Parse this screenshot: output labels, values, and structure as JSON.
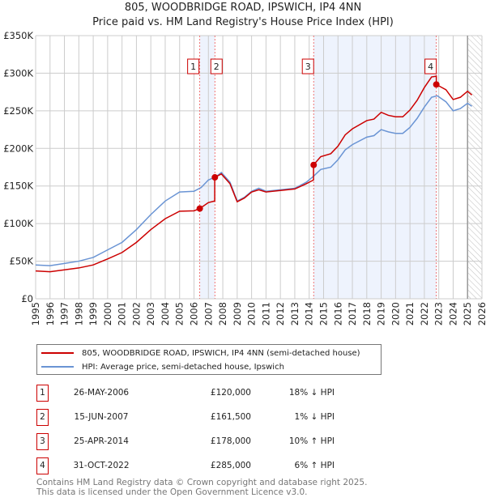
{
  "title": "805, WOODBRIDGE ROAD, IPSWICH, IP4 4NN",
  "subtitle": "Price paid vs. HM Land Registry's House Price Index (HPI)",
  "chart_data": {
    "type": "line",
    "xlim": [
      1995,
      2026
    ],
    "ylim": [
      0,
      350000
    ],
    "yticks": [
      {
        "v": 0,
        "label": "£0"
      },
      {
        "v": 50000,
        "label": "£50K"
      },
      {
        "v": 100000,
        "label": "£100K"
      },
      {
        "v": 150000,
        "label": "£150K"
      },
      {
        "v": 200000,
        "label": "£200K"
      },
      {
        "v": 250000,
        "label": "£250K"
      },
      {
        "v": 300000,
        "label": "£300K"
      },
      {
        "v": 350000,
        "label": "£350K"
      }
    ],
    "xticks": [
      1995,
      1996,
      1997,
      1998,
      1999,
      2000,
      2001,
      2002,
      2003,
      2004,
      2005,
      2006,
      2007,
      2008,
      2009,
      2010,
      2011,
      2012,
      2013,
      2014,
      2015,
      2016,
      2017,
      2018,
      2019,
      2020,
      2021,
      2022,
      2023,
      2024,
      2025,
      2026
    ],
    "grid": true,
    "series": [
      {
        "name": "805, WOODBRIDGE ROAD, IPSWICH, IP4 4NN (semi-detached house)",
        "color": "#cc0000",
        "x": [
          1995,
          1996,
          1997,
          1998,
          1999,
          2000,
          2001,
          2002,
          2003,
          2004,
          2005,
          2006,
          2006.4,
          2007,
          2007.44,
          2007.44,
          2007.9,
          2008.5,
          2009,
          2009.5,
          2010,
          2010.5,
          2011,
          2012,
          2013,
          2013.8,
          2014.3,
          2014.3,
          2014.8,
          2015.5,
          2016,
          2016.5,
          2017,
          2018,
          2018.5,
          2019,
          2019.5,
          2020,
          2020.5,
          2021,
          2021.5,
          2022,
          2022.5,
          2022.83,
          2022.83,
          2023.5,
          2024,
          2024.5,
          2025,
          2025.3
        ],
        "y": [
          37000,
          36000,
          38500,
          41000,
          45000,
          53000,
          61500,
          75000,
          92000,
          106500,
          116500,
          117000,
          120000,
          128000,
          130000,
          161500,
          166000,
          153000,
          129000,
          134000,
          142000,
          145000,
          142000,
          144000,
          146000,
          153000,
          158000,
          178000,
          189000,
          193000,
          203000,
          218000,
          226000,
          237000,
          239000,
          248000,
          244000,
          242000,
          242000,
          251000,
          264000,
          281000,
          295000,
          296000,
          285000,
          278000,
          265000,
          268000,
          276000,
          271000
        ]
      },
      {
        "name": "HPI: Average price, semi-detached house, Ipswich",
        "color": "#6a94d4",
        "x": [
          1995,
          1996,
          1997,
          1998,
          1999,
          2000,
          2001,
          2002,
          2003,
          2004,
          2005,
          2006,
          2006.5,
          2007,
          2007.5,
          2007.9,
          2008.5,
          2009,
          2009.5,
          2010,
          2010.5,
          2011,
          2012,
          2013,
          2013.8,
          2014.3,
          2014.8,
          2015.5,
          2016,
          2016.5,
          2017,
          2018,
          2018.5,
          2019,
          2019.5,
          2020,
          2020.5,
          2021,
          2021.5,
          2022,
          2022.5,
          2022.9,
          2023.5,
          2024,
          2024.5,
          2025,
          2025.3
        ],
        "y": [
          45000,
          44000,
          47000,
          50000,
          55000,
          65000,
          75000,
          92000,
          112000,
          130000,
          142000,
          143000,
          148000,
          158000,
          162000,
          168000,
          155000,
          130000,
          135000,
          143000,
          147000,
          143000,
          145000,
          147000,
          155000,
          163000,
          172000,
          175000,
          185000,
          198000,
          205000,
          215000,
          217000,
          225000,
          222000,
          220000,
          220000,
          228000,
          240000,
          255000,
          268000,
          270000,
          262000,
          250000,
          253000,
          260000,
          256000
        ]
      }
    ],
    "sales": [
      {
        "id": "1",
        "x": 2006.4,
        "y": 120000,
        "date": "26-MAY-2006",
        "price": "£120,000",
        "hpi": "18% ↓ HPI"
      },
      {
        "id": "2",
        "x": 2007.45,
        "y": 161500,
        "date": "15-JUN-2007",
        "price": "£161,500",
        "hpi": "1% ↓ HPI"
      },
      {
        "id": "3",
        "x": 2014.31,
        "y": 178000,
        "date": "25-APR-2014",
        "price": "£178,000",
        "hpi": "10% ↑ HPI"
      },
      {
        "id": "4",
        "x": 2022.83,
        "y": 285000,
        "date": "31-OCT-2022",
        "price": "£285,000",
        "hpi": "6% ↑ HPI"
      }
    ],
    "shaded": [
      [
        2006.4,
        2007.45
      ],
      [
        2014.31,
        2022.83
      ]
    ],
    "hatch_from": 2025.0
  },
  "footer": [
    "Contains HM Land Registry data © Crown copyright and database right 2025.",
    "This data is licensed under the Open Government Licence v3.0."
  ]
}
